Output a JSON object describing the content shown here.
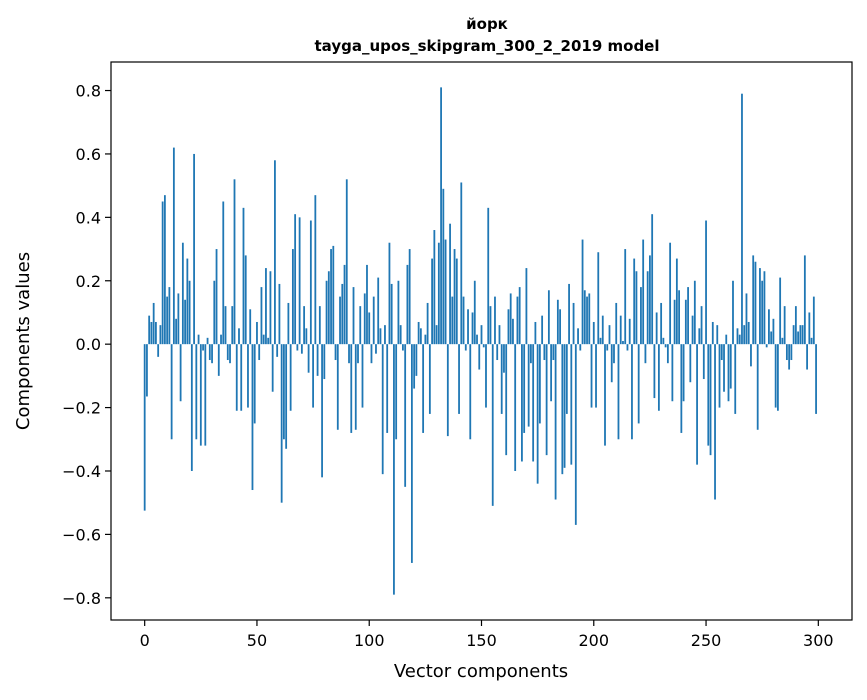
{
  "chart_data": {
    "type": "bar",
    "title": "йорк",
    "subtitle": "tayga_upos_skipgram_300_2_2019 model",
    "xlabel": "Vector components",
    "ylabel": "Components values",
    "xlim": [
      -15,
      315
    ],
    "ylim": [
      -0.87,
      0.89
    ],
    "xticks": [
      0,
      50,
      100,
      150,
      200,
      250,
      300
    ],
    "xtick_labels": [
      "0",
      "50",
      "100",
      "150",
      "200",
      "250",
      "300"
    ],
    "yticks": [
      -0.8,
      -0.6,
      -0.4,
      -0.2,
      0.0,
      0.2,
      0.4,
      0.6,
      0.8
    ],
    "ytick_labels": [
      "−0.8",
      "−0.6",
      "−0.4",
      "−0.2",
      "0.0",
      "0.2",
      "0.4",
      "0.6",
      "0.8"
    ],
    "grid": false,
    "bar_color": "#1f77b4",
    "values": [
      -0.525,
      -0.165,
      0.09,
      0.07,
      0.13,
      0.07,
      -0.04,
      0.06,
      0.45,
      0.47,
      0.15,
      0.18,
      -0.3,
      0.62,
      0.08,
      0.16,
      -0.18,
      0.32,
      0.14,
      0.27,
      0.2,
      -0.4,
      0.6,
      -0.3,
      0.03,
      -0.32,
      -0.02,
      -0.32,
      0.02,
      -0.05,
      -0.06,
      0.2,
      0.3,
      -0.1,
      0.03,
      0.45,
      0.12,
      -0.05,
      -0.06,
      0.12,
      0.52,
      -0.21,
      0.05,
      -0.21,
      0.43,
      0.28,
      -0.2,
      0.11,
      -0.46,
      -0.25,
      0.07,
      -0.05,
      0.18,
      0.03,
      0.24,
      0.02,
      0.23,
      -0.15,
      0.58,
      -0.04,
      0.19,
      -0.5,
      -0.3,
      -0.33,
      0.13,
      -0.21,
      0.3,
      0.41,
      -0.02,
      0.4,
      -0.03,
      0.12,
      0.05,
      -0.09,
      0.39,
      -0.2,
      0.47,
      -0.1,
      0.12,
      -0.42,
      -0.11,
      0.2,
      0.23,
      0.3,
      0.31,
      -0.05,
      -0.27,
      0.15,
      0.19,
      0.25,
      0.52,
      -0.06,
      -0.28,
      0.18,
      -0.27,
      -0.06,
      0.12,
      -0.2,
      0.16,
      0.25,
      0.1,
      -0.06,
      0.15,
      -0.03,
      0.21,
      0.05,
      -0.41,
      0.06,
      -0.28,
      0.32,
      0.19,
      -0.79,
      -0.3,
      0.2,
      0.06,
      -0.02,
      -0.45,
      0.25,
      0.3,
      -0.69,
      -0.14,
      -0.1,
      0.07,
      0.05,
      -0.28,
      0.03,
      0.13,
      -0.22,
      0.27,
      0.36,
      0.06,
      0.32,
      0.81,
      0.49,
      0.33,
      -0.29,
      0.38,
      0.15,
      0.3,
      0.27,
      -0.22,
      0.51,
      0.15,
      -0.02,
      0.11,
      -0.3,
      0.1,
      0.2,
      0.03,
      -0.08,
      0.06,
      -0.01,
      -0.2,
      0.43,
      0.12,
      -0.51,
      0.15,
      -0.05,
      0.06,
      -0.22,
      -0.09,
      -0.35,
      0.11,
      0.16,
      0.08,
      -0.4,
      0.15,
      0.18,
      -0.37,
      -0.28,
      0.24,
      -0.26,
      -0.06,
      -0.37,
      0.07,
      -0.44,
      -0.25,
      0.09,
      -0.05,
      -0.35,
      0.17,
      -0.18,
      -0.05,
      -0.49,
      0.14,
      0.11,
      -0.41,
      -0.39,
      -0.22,
      0.19,
      -0.38,
      0.13,
      -0.57,
      0.05,
      -0.02,
      0.33,
      0.17,
      0.15,
      0.16,
      -0.2,
      0.07,
      -0.2,
      0.29,
      0.02,
      0.09,
      -0.32,
      -0.02,
      0.06,
      -0.12,
      -0.06,
      0.13,
      -0.3,
      0.09,
      0.01,
      0.3,
      -0.02,
      0.08,
      -0.3,
      0.27,
      0.23,
      -0.25,
      0.18,
      0.33,
      -0.06,
      0.23,
      0.28,
      0.41,
      -0.17,
      0.1,
      -0.21,
      0.13,
      0.02,
      -0.01,
      -0.06,
      0.32,
      -0.18,
      0.14,
      0.27,
      0.17,
      -0.28,
      -0.18,
      0.14,
      0.18,
      -0.12,
      0.09,
      0.2,
      -0.38,
      0.05,
      0.12,
      -0.11,
      0.39,
      -0.32,
      -0.35,
      0.07,
      -0.49,
      0.06,
      -0.2,
      -0.05,
      -0.15,
      0.03,
      -0.18,
      -0.14,
      0.2,
      -0.22,
      0.05,
      0.03,
      0.79,
      0.06,
      0.16,
      0.07,
      -0.07,
      0.28,
      0.26,
      -0.27,
      0.24,
      0.2,
      0.23,
      -0.01,
      0.11,
      0.04,
      0.08,
      -0.2,
      -0.21,
      0.21,
      0.02,
      0.12,
      -0.05,
      -0.08,
      -0.05,
      0.06,
      0.12,
      0.04,
      0.06,
      0.06,
      0.28,
      -0.08,
      0.1,
      0.02,
      0.15,
      -0.22
    ]
  }
}
